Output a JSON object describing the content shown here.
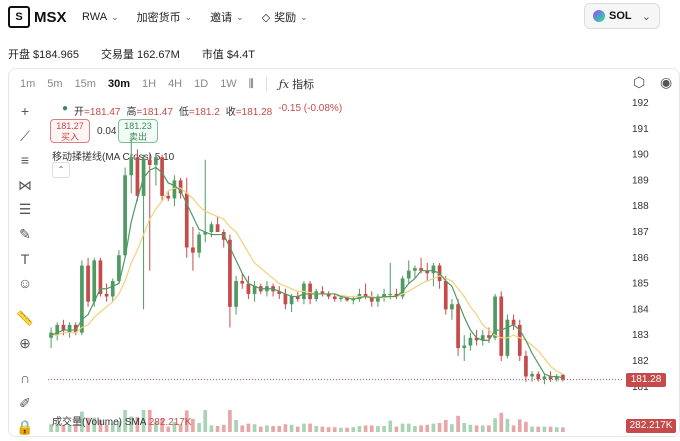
{
  "brand": "MSX",
  "nav": [
    "RWA",
    "加密货币",
    "邀请",
    "奖励"
  ],
  "asset": "SOL",
  "stats": {
    "open": "开盘 $184.965",
    "volume": "交易量 162.67M",
    "market_cap": "市值 $4.4T"
  },
  "timeframes": [
    "1m",
    "5m",
    "15m",
    "30m",
    "1H",
    "4H",
    "1D",
    "1W"
  ],
  "timeframe_active": "30m",
  "indicators_label": "指标",
  "ohlc": {
    "open_label": "开",
    "open": "=181.47",
    "high_label": "高",
    "high": "=181.47",
    "low_label": "低",
    "low": "=181.2",
    "close_label": "收",
    "close": "=181.28",
    "change": "-0.15 (-0.08%)"
  },
  "order": {
    "buy_price": "181.27",
    "buy_label": "买入",
    "spread": "0.04",
    "sell_price": "181.23",
    "sell_label": "卖出"
  },
  "ma_label": "移动揉搓线(MA Cross) 5 10",
  "volume_label": "成交量(Volume) SMA",
  "volume_value": "282.217K",
  "current_price": "181.28",
  "current_volume": "282.217K",
  "colors": {
    "up": "#4f9a63",
    "down": "#c64a4a",
    "ma_fast": "#4f9a63",
    "ma_slow": "#f0d27a"
  },
  "chart_data": {
    "type": "candlestick",
    "y_ticks": [
      "192",
      "191",
      "190",
      "189",
      "188",
      "187",
      "186",
      "185",
      "184",
      "183",
      "182",
      "181"
    ],
    "ylim": [
      180.9,
      192
    ],
    "candles": [
      [
        182.9,
        183.3,
        182.5,
        183.1
      ],
      [
        183.0,
        183.5,
        182.8,
        183.4
      ],
      [
        183.4,
        183.6,
        183.0,
        183.2
      ],
      [
        183.1,
        183.5,
        182.9,
        183.4
      ],
      [
        183.4,
        183.5,
        183.0,
        183.1
      ],
      [
        183.1,
        185.9,
        183.0,
        185.7
      ],
      [
        185.7,
        186.0,
        184.1,
        184.3
      ],
      [
        184.3,
        186.0,
        184.1,
        185.9
      ],
      [
        185.9,
        186.0,
        184.5,
        184.6
      ],
      [
        184.6,
        185.0,
        184.3,
        184.5
      ],
      [
        184.5,
        185.2,
        184.3,
        185.1
      ],
      [
        185.1,
        186.3,
        185.0,
        186.1
      ],
      [
        186.1,
        189.5,
        186.0,
        189.2
      ],
      [
        189.2,
        190.6,
        188.5,
        189.9
      ],
      [
        189.9,
        190.2,
        188.2,
        188.4
      ],
      [
        188.4,
        190.0,
        184.0,
        189.8
      ],
      [
        189.8,
        190.0,
        185.5,
        189.6
      ],
      [
        189.6,
        190.0,
        188.8,
        189.9
      ],
      [
        189.9,
        190.0,
        188.2,
        188.4
      ],
      [
        188.4,
        188.6,
        188.2,
        188.3
      ],
      [
        188.3,
        189.2,
        188.0,
        189.0
      ],
      [
        189.0,
        189.1,
        188.3,
        188.5
      ],
      [
        188.5,
        189.1,
        186.0,
        186.4
      ],
      [
        186.4,
        187.2,
        185.5,
        186.2
      ],
      [
        186.2,
        187.0,
        186.0,
        186.9
      ],
      [
        186.9,
        189.8,
        186.6,
        187.0
      ],
      [
        187.0,
        187.4,
        186.8,
        187.3
      ],
      [
        187.3,
        187.6,
        187.1,
        187.0
      ],
      [
        187.0,
        187.1,
        186.4,
        186.7
      ],
      [
        186.7,
        186.9,
        183.3,
        184.1
      ],
      [
        184.1,
        185.3,
        183.8,
        185.1
      ],
      [
        185.1,
        185.4,
        184.8,
        185.0
      ],
      [
        185.0,
        185.3,
        184.4,
        184.6
      ],
      [
        184.6,
        185.1,
        184.3,
        184.9
      ],
      [
        184.9,
        185.0,
        184.6,
        184.7
      ],
      [
        184.7,
        185.1,
        184.5,
        184.9
      ],
      [
        184.9,
        185.0,
        184.5,
        184.7
      ],
      [
        184.7,
        184.9,
        184.4,
        184.6
      ],
      [
        184.6,
        184.8,
        184.0,
        184.2
      ],
      [
        184.2,
        184.6,
        183.9,
        184.5
      ],
      [
        184.5,
        184.7,
        184.3,
        184.4
      ],
      [
        184.4,
        185.1,
        184.2,
        185.0
      ],
      [
        185.0,
        185.1,
        184.2,
        184.4
      ],
      [
        184.4,
        184.8,
        184.3,
        184.7
      ],
      [
        184.7,
        184.9,
        184.5,
        184.6
      ],
      [
        184.6,
        184.7,
        184.4,
        184.5
      ],
      [
        184.5,
        184.6,
        184.3,
        184.4
      ],
      [
        184.4,
        184.5,
        184.3,
        184.45
      ],
      [
        184.45,
        184.5,
        184.3,
        184.35
      ],
      [
        184.35,
        184.5,
        184.2,
        184.4
      ],
      [
        184.4,
        184.8,
        184.3,
        184.6
      ],
      [
        184.6,
        185.0,
        184.4,
        184.5
      ],
      [
        184.5,
        184.7,
        184.1,
        184.3
      ],
      [
        184.3,
        184.6,
        184.1,
        184.5
      ],
      [
        184.5,
        184.8,
        184.3,
        184.6
      ],
      [
        184.6,
        185.8,
        184.4,
        184.6
      ],
      [
        184.6,
        184.8,
        184.4,
        184.5
      ],
      [
        184.5,
        185.3,
        184.4,
        185.2
      ],
      [
        185.2,
        185.9,
        185.0,
        185.5
      ],
      [
        185.5,
        185.7,
        185.2,
        185.6
      ],
      [
        185.6,
        186.0,
        185.4,
        185.5
      ],
      [
        185.5,
        185.8,
        185.1,
        185.4
      ],
      [
        185.4,
        185.8,
        184.9,
        185.7
      ],
      [
        185.7,
        185.8,
        184.8,
        185.1
      ],
      [
        185.1,
        185.3,
        183.8,
        184.0
      ],
      [
        184.0,
        184.4,
        183.6,
        184.2
      ],
      [
        184.2,
        184.4,
        182.2,
        182.5
      ],
      [
        182.5,
        183.0,
        182.0,
        182.6
      ],
      [
        182.6,
        183.1,
        182.4,
        182.9
      ],
      [
        182.9,
        183.2,
        182.6,
        182.8
      ],
      [
        182.8,
        183.2,
        182.6,
        183.0
      ],
      [
        183.0,
        183.3,
        182.7,
        182.9
      ],
      [
        182.9,
        184.6,
        182.8,
        184.5
      ],
      [
        184.5,
        184.7,
        182.0,
        182.2
      ],
      [
        182.2,
        183.8,
        182.1,
        183.6
      ],
      [
        183.6,
        183.8,
        183.2,
        183.4
      ],
      [
        183.4,
        183.6,
        182.0,
        182.2
      ],
      [
        182.2,
        182.4,
        181.2,
        181.4
      ],
      [
        181.4,
        181.6,
        181.2,
        181.5
      ],
      [
        181.5,
        181.6,
        181.2,
        181.3
      ],
      [
        181.3,
        181.5,
        181.1,
        181.4
      ],
      [
        181.4,
        181.6,
        181.2,
        181.3
      ],
      [
        181.3,
        181.5,
        181.2,
        181.4
      ],
      [
        181.47,
        181.47,
        181.2,
        181.28
      ]
    ],
    "ma5": [
      183.0,
      183.1,
      183.2,
      183.2,
      183.2,
      183.6,
      183.8,
      184.3,
      184.8,
      184.8,
      184.9,
      185.0,
      186.0,
      187.4,
      188.3,
      189.1,
      189.4,
      189.5,
      189.3,
      188.9,
      188.8,
      188.6,
      188.1,
      187.6,
      187.1,
      187.0,
      186.9,
      186.9,
      186.9,
      186.4,
      185.9,
      185.4,
      185.0,
      184.9,
      184.8,
      184.8,
      184.8,
      184.7,
      184.6,
      184.5,
      184.5,
      184.6,
      184.6,
      184.6,
      184.6,
      184.6,
      184.6,
      184.5,
      184.45,
      184.4,
      184.45,
      184.5,
      184.45,
      184.45,
      184.5,
      184.5,
      184.5,
      184.7,
      185.0,
      185.2,
      185.5,
      185.5,
      185.5,
      185.4,
      185.1,
      184.9,
      184.3,
      183.7,
      183.2,
      182.9,
      182.8,
      182.8,
      183.2,
      183.2,
      183.3,
      183.4,
      183.2,
      182.8,
      182.3,
      181.9,
      181.5,
      181.4,
      181.4,
      181.35
    ],
    "ma10": [
      183.0,
      183.0,
      183.1,
      183.1,
      183.1,
      183.3,
      183.4,
      183.7,
      183.9,
      184.1,
      184.3,
      184.6,
      185.1,
      185.8,
      186.3,
      186.9,
      187.5,
      187.9,
      188.2,
      188.6,
      188.7,
      188.7,
      188.5,
      188.3,
      188.0,
      187.8,
      187.7,
      187.6,
      187.5,
      187.2,
      187.0,
      186.6,
      186.2,
      185.8,
      185.6,
      185.4,
      185.2,
      185.0,
      184.9,
      184.8,
      184.7,
      184.7,
      184.65,
      184.6,
      184.6,
      184.6,
      184.6,
      184.55,
      184.5,
      184.5,
      184.5,
      184.5,
      184.5,
      184.45,
      184.45,
      184.5,
      184.5,
      184.6,
      184.7,
      184.85,
      185.0,
      185.1,
      185.2,
      185.3,
      185.2,
      185.1,
      184.8,
      184.5,
      184.1,
      183.8,
      183.4,
      183.2,
      183.0,
      182.9,
      182.9,
      183.0,
      182.9,
      182.8,
      182.6,
      182.4,
      182.1,
      181.8,
      181.6,
      181.5
    ]
  }
}
